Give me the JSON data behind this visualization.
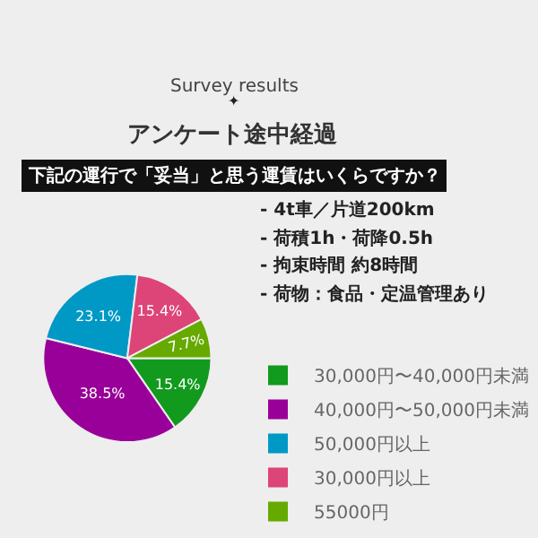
{
  "chart_data": {
    "type": "pie",
    "title": "アンケート途中経過",
    "subtitle": "Survey results",
    "annotations": [
      "✦",
      "下記の運行で「妥当」と思う運賃はいくらですか？",
      "- 4t車／片道200km",
      "- 荷積1h・荷降0.5h",
      "- 拘束時間 約8時間",
      "- 荷物：食品・定温管理あり"
    ],
    "categories": [
      "30,000円〜40,000円未満",
      "40,000円〜50,000円未満",
      "50,000円以上",
      "30,000円以上",
      "55000円"
    ],
    "values": [
      15.4,
      38.5,
      23.1,
      15.4,
      7.7
    ],
    "value_labels": [
      "15.4%",
      "38.5%",
      "23.1%",
      "15.4%",
      "7.7%"
    ],
    "colors": [
      "#129a1e",
      "#990099",
      "#0099c6",
      "#dd4477",
      "#66aa00"
    ],
    "legend": "bottom right"
  }
}
